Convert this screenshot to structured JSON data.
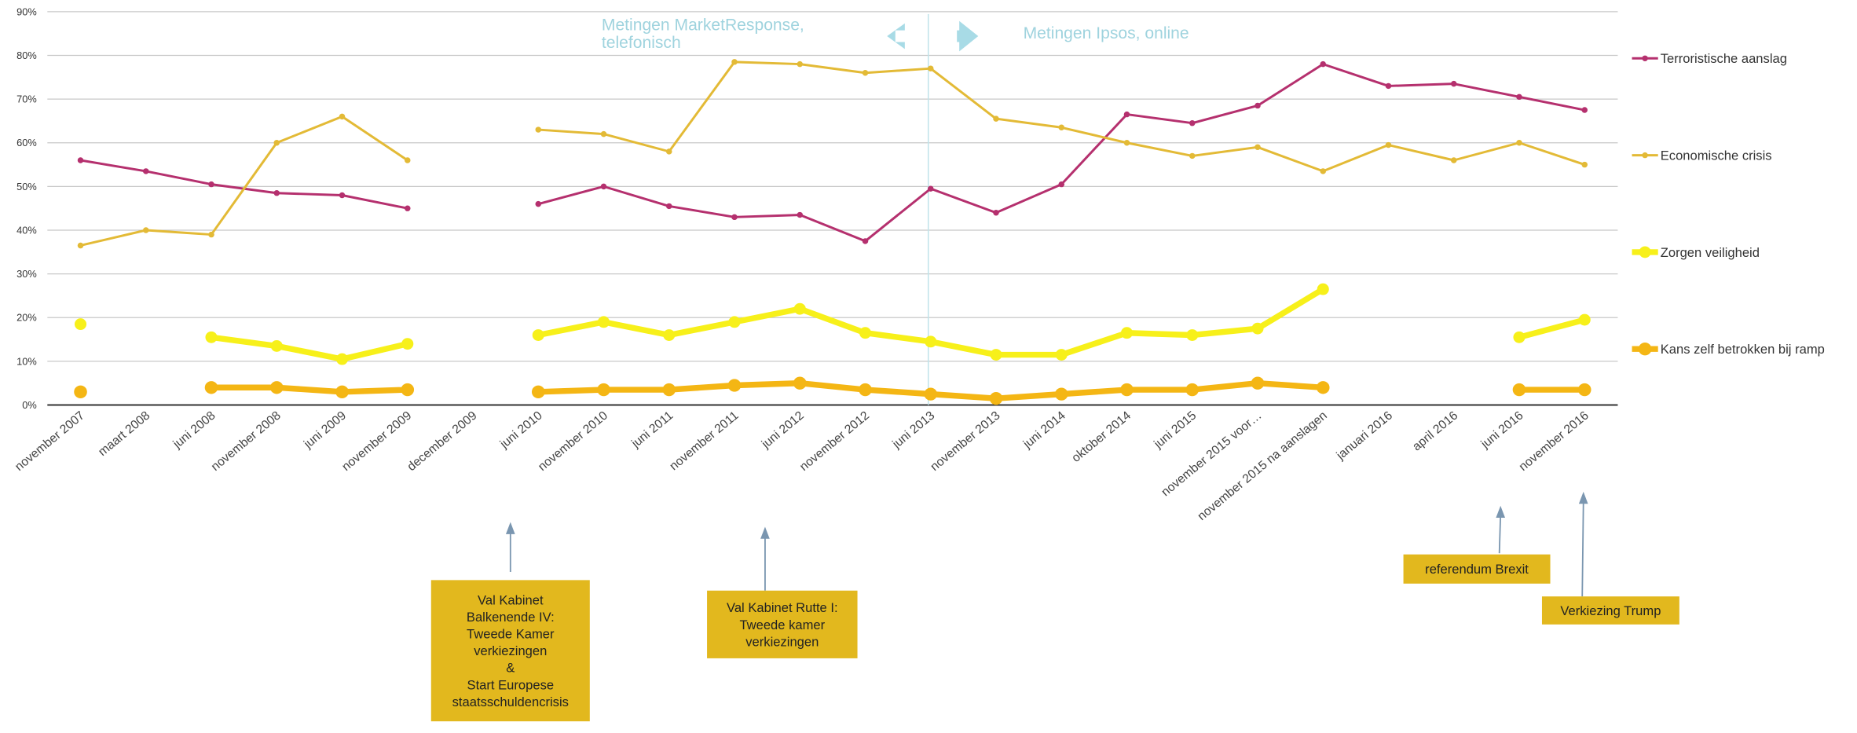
{
  "chart_data": {
    "type": "line",
    "categories": [
      "november 2007",
      "maart 2008",
      "juni 2008",
      "november 2008",
      "juni 2009",
      "november 2009",
      "december 2009",
      "juni 2010",
      "november 2010",
      "juni 2011",
      "november 2011",
      "juni 2012",
      "november 2012",
      "juni 2013",
      "november 2013",
      "juni 2014",
      "oktober 2014",
      "juni 2015",
      "november 2015 voor…",
      "november 2015 na aanslagen",
      "januari 2016",
      "april 2016",
      "juni 2016",
      "november 2016"
    ],
    "series": [
      {
        "name": "Terroristische aanslag",
        "color": "#b5306e",
        "values": [
          56,
          53.5,
          50.5,
          48.5,
          48,
          45,
          null,
          46,
          50,
          45.5,
          43,
          43.5,
          37.5,
          49.5,
          44,
          50.5,
          66.5,
          64.5,
          68.5,
          78,
          73,
          73.5,
          70.5,
          67.5
        ]
      },
      {
        "name": "Economische crisis",
        "color": "#e3ba36",
        "values": [
          36.5,
          40,
          39,
          60,
          66,
          56,
          null,
          63,
          62,
          58,
          78.5,
          78,
          76,
          77,
          65.5,
          63.5,
          60,
          57,
          59,
          53.5,
          59.5,
          56,
          60,
          55
        ]
      },
      {
        "name": "Zorgen veiligheid",
        "color": "#f7f01a",
        "values": [
          18.5,
          null,
          15.5,
          13.5,
          10.5,
          14,
          null,
          16,
          19,
          16,
          19,
          22,
          16.5,
          14.5,
          11.5,
          11.5,
          16.5,
          16,
          17.5,
          26.5,
          null,
          null,
          15.5,
          19.5
        ]
      },
      {
        "name": "Kans zelf betrokken bij ramp",
        "color": "#f4b614",
        "values": [
          3,
          null,
          4,
          4,
          3,
          3.5,
          null,
          3,
          3.5,
          3.5,
          4.5,
          5,
          3.5,
          2.5,
          1.5,
          2.5,
          3.5,
          3.5,
          5,
          4,
          null,
          null,
          3.5,
          3.5
        ]
      }
    ],
    "ylim": [
      0,
      90
    ],
    "yticks": [
      {
        "value": 0,
        "label": "0%"
      },
      {
        "value": 10,
        "label": "10%"
      },
      {
        "value": 20,
        "label": "20%"
      },
      {
        "value": 30,
        "label": "30%"
      },
      {
        "value": 40,
        "label": "40%"
      },
      {
        "value": 50,
        "label": "50%"
      },
      {
        "value": 60,
        "label": "60%"
      },
      {
        "value": 70,
        "label": "70%"
      },
      {
        "value": 80,
        "label": "80%"
      },
      {
        "value": 90,
        "label": "90%"
      }
    ],
    "grid": true,
    "legend": "right",
    "periods": [
      [
        "Metingen MarketResponse,",
        "telefonisch"
      ],
      [
        "Metingen Ipsos, online"
      ]
    ],
    "annotations": [
      [
        "Val Kabinet",
        "Balkenende IV:",
        "Tweede Kamer",
        "verkiezingen",
        "&",
        "Start Europese",
        "staatsschuldencrisis"
      ],
      [
        "Val Kabinet Rutte I:",
        "Tweede kamer",
        "verkiezingen"
      ],
      [
        "referendum Brexit"
      ],
      [
        "Verkiezing Trump"
      ]
    ]
  }
}
